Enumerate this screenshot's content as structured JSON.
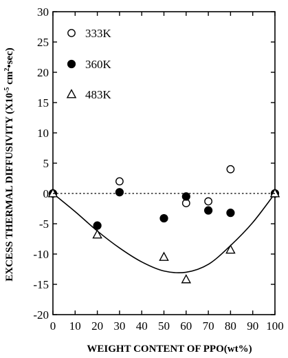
{
  "chart_data": {
    "type": "scatter",
    "xlabel": "WEIGHT CONTENT OF PPO(wt%)",
    "ylabel": {
      "pre": "EXCESS THERMAL DIFFUSIVITY (X10",
      "exp1": "-5",
      "mid": " cm",
      "exp2": "2",
      "post": "•sec)"
    },
    "xlim": [
      0,
      100
    ],
    "ylim": [
      -20,
      30
    ],
    "xticks": [
      0,
      10,
      20,
      30,
      40,
      50,
      60,
      70,
      80,
      90,
      100
    ],
    "yticks": [
      -20,
      -15,
      -10,
      -5,
      0,
      5,
      10,
      15,
      20,
      25,
      30
    ],
    "grid": false,
    "legend_position": "top-left",
    "zero_line": "dotted",
    "series": [
      {
        "name": "333K",
        "marker": "open-circle",
        "x": [
          0,
          30,
          60,
          70,
          80,
          100
        ],
        "y": [
          0,
          2,
          -1.6,
          -1.3,
          4,
          0
        ]
      },
      {
        "name": "360K",
        "marker": "filled-circle",
        "x": [
          0,
          20,
          30,
          50,
          60,
          70,
          80,
          100
        ],
        "y": [
          0,
          -5.3,
          0.2,
          -4.1,
          -0.5,
          -2.8,
          -3.2,
          0
        ]
      },
      {
        "name": "483K",
        "marker": "open-triangle",
        "x": [
          0,
          20,
          50,
          60,
          80,
          100
        ],
        "y": [
          0,
          -6.8,
          -10.5,
          -14.2,
          -9.3,
          0
        ]
      }
    ],
    "fit_curve": {
      "x": [
        0,
        10,
        20,
        30,
        40,
        50,
        60,
        70,
        80,
        90,
        100
      ],
      "y": [
        0,
        -3.0,
        -6.2,
        -9.0,
        -11.3,
        -12.8,
        -13.0,
        -11.7,
        -8.6,
        -4.8,
        0
      ]
    }
  }
}
